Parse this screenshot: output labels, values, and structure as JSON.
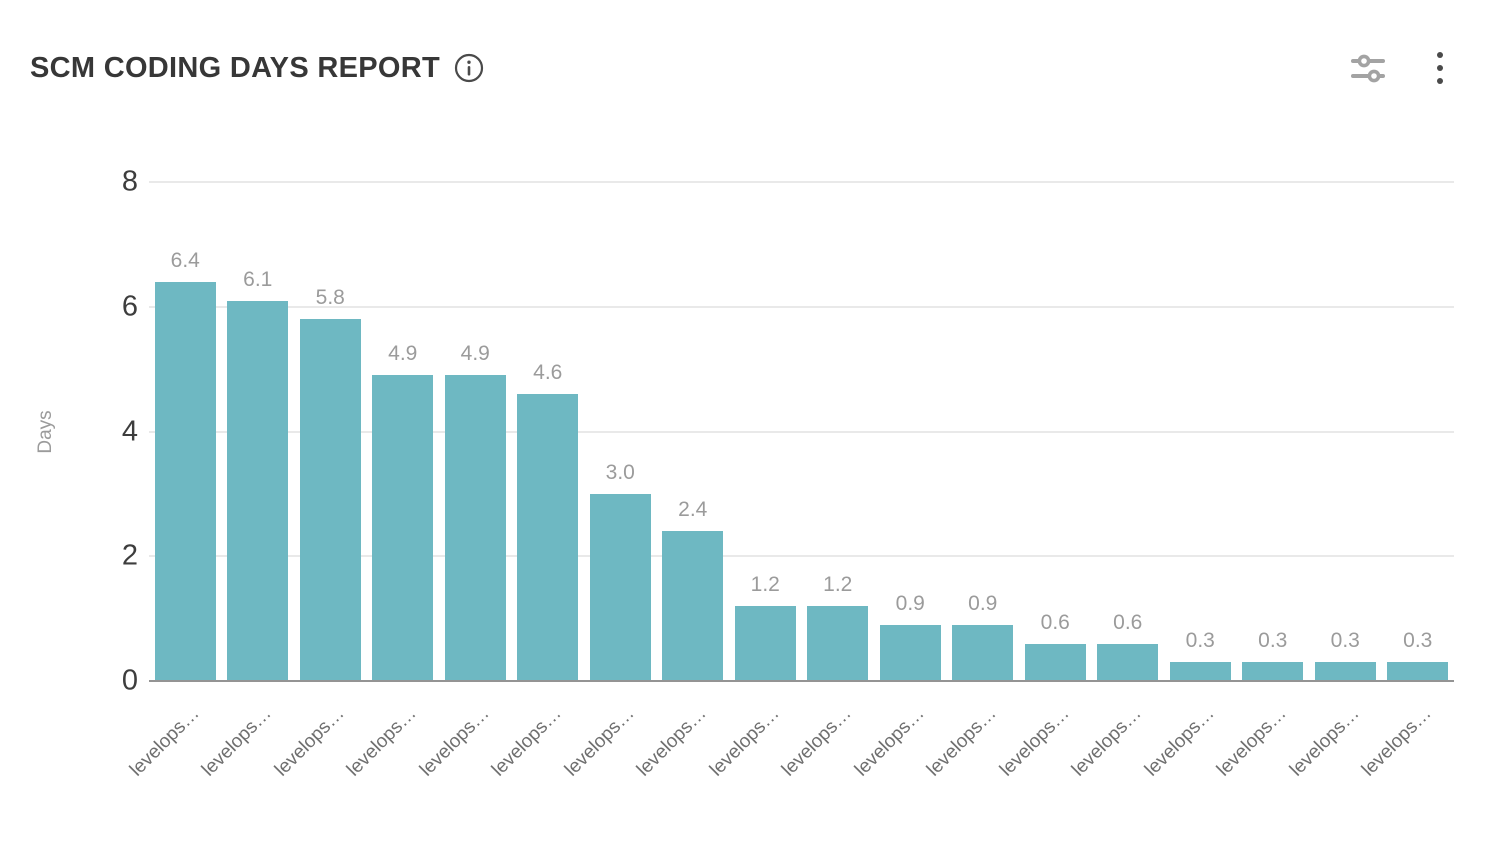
{
  "header": {
    "title": "SCM CODING DAYS REPORT",
    "info_icon": "info-circle-icon",
    "filters_icon": "filters-sliders-icon",
    "menu_icon": "kebab-menu-icon"
  },
  "chart_data": {
    "type": "bar",
    "title": "SCM CODING DAYS REPORT",
    "xlabel": "",
    "ylabel": "Days",
    "ylim": [
      0,
      8
    ],
    "yticks": [
      0,
      2,
      4,
      6,
      8
    ],
    "grid": true,
    "legend": false,
    "bar_color": "#6eb8c2",
    "categories": [
      "levelops…",
      "levelops…",
      "levelops…",
      "levelops…",
      "levelops…",
      "levelops…",
      "levelops…",
      "levelops…",
      "levelops…",
      "levelops…",
      "levelops…",
      "levelops…",
      "levelops…",
      "levelops…",
      "levelops…",
      "levelops…",
      "levelops…",
      "levelops…"
    ],
    "values": [
      6.4,
      6.1,
      5.8,
      4.9,
      4.9,
      4.6,
      3.0,
      2.4,
      1.2,
      1.2,
      0.9,
      0.9,
      0.6,
      0.6,
      0.3,
      0.3,
      0.3,
      0.3
    ],
    "value_labels": [
      "6.4",
      "6.1",
      "5.8",
      "4.9",
      "4.9",
      "4.6",
      "3.0",
      "2.4",
      "1.2",
      "1.2",
      "0.9",
      "0.9",
      "0.6",
      "0.6",
      "0.3",
      "0.3",
      "0.3",
      "0.3"
    ]
  },
  "colors": {
    "bar": "#6eb8c2",
    "grid": "#e9e9e9",
    "axis_line": "#949494",
    "tick_text": "#3d3d3d",
    "muted_text": "#9b9b9b",
    "x_label_text": "#6f6f6f",
    "title_text": "#373737"
  }
}
